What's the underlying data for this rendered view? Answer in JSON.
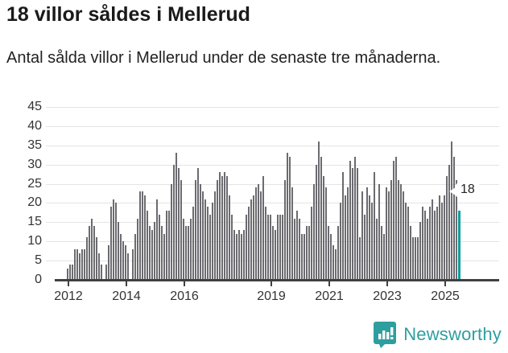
{
  "header": {
    "title": "18 villor såldes i Mellerud",
    "subtitle": "Antal sålda villor i Mellerud under de senaste tre månaderna."
  },
  "chart_data": {
    "type": "bar",
    "title": "18 villor såldes i Mellerud",
    "xlabel": "",
    "ylabel": "",
    "ylim": [
      0,
      45
    ],
    "y_ticks": [
      0,
      5,
      10,
      15,
      20,
      25,
      30,
      35,
      40,
      45
    ],
    "grid": true,
    "legend": false,
    "start_year": 2012,
    "x_tick_years": [
      2012,
      2014,
      2016,
      2019,
      2021,
      2023,
      2025
    ],
    "values": [
      3,
      4,
      4,
      8,
      8,
      7,
      8,
      8,
      11,
      14,
      16,
      14,
      11,
      7,
      4,
      0,
      4,
      9,
      19,
      21,
      20,
      15,
      12,
      10,
      9,
      7,
      0,
      8,
      12,
      16,
      23,
      23,
      22,
      18,
      14,
      13,
      15,
      21,
      17,
      14,
      12,
      18,
      18,
      25,
      30,
      33,
      29,
      26,
      16,
      14,
      14,
      16,
      19,
      26,
      29,
      25,
      23,
      21,
      19,
      17,
      20,
      23,
      26,
      28,
      27,
      28,
      27,
      22,
      17,
      13,
      12,
      13,
      12,
      13,
      17,
      19,
      21,
      22,
      24,
      25,
      23,
      27,
      19,
      17,
      17,
      14,
      13,
      17,
      17,
      17,
      26,
      33,
      32,
      24,
      16,
      18,
      16,
      12,
      12,
      14,
      14,
      19,
      25,
      30,
      36,
      32,
      27,
      24,
      14,
      12,
      9,
      8,
      14,
      20,
      28,
      22,
      24,
      31,
      29,
      32,
      29,
      11,
      23,
      17,
      24,
      22,
      20,
      28,
      16,
      25,
      14,
      12,
      24,
      23,
      26,
      31,
      32,
      26,
      25,
      23,
      20,
      19,
      14,
      11,
      11,
      11,
      15,
      19,
      18,
      16,
      19,
      21,
      18,
      19,
      22,
      20,
      22,
      27,
      30,
      36,
      32,
      26,
      18
    ],
    "bar_color": "#6b6b70",
    "highlight": {
      "index": 162,
      "value": 18,
      "label": "18",
      "color": "#0f9f9f"
    }
  },
  "footer": {
    "brand": "Newsworthy",
    "logo_color": "#2f9e9e"
  }
}
